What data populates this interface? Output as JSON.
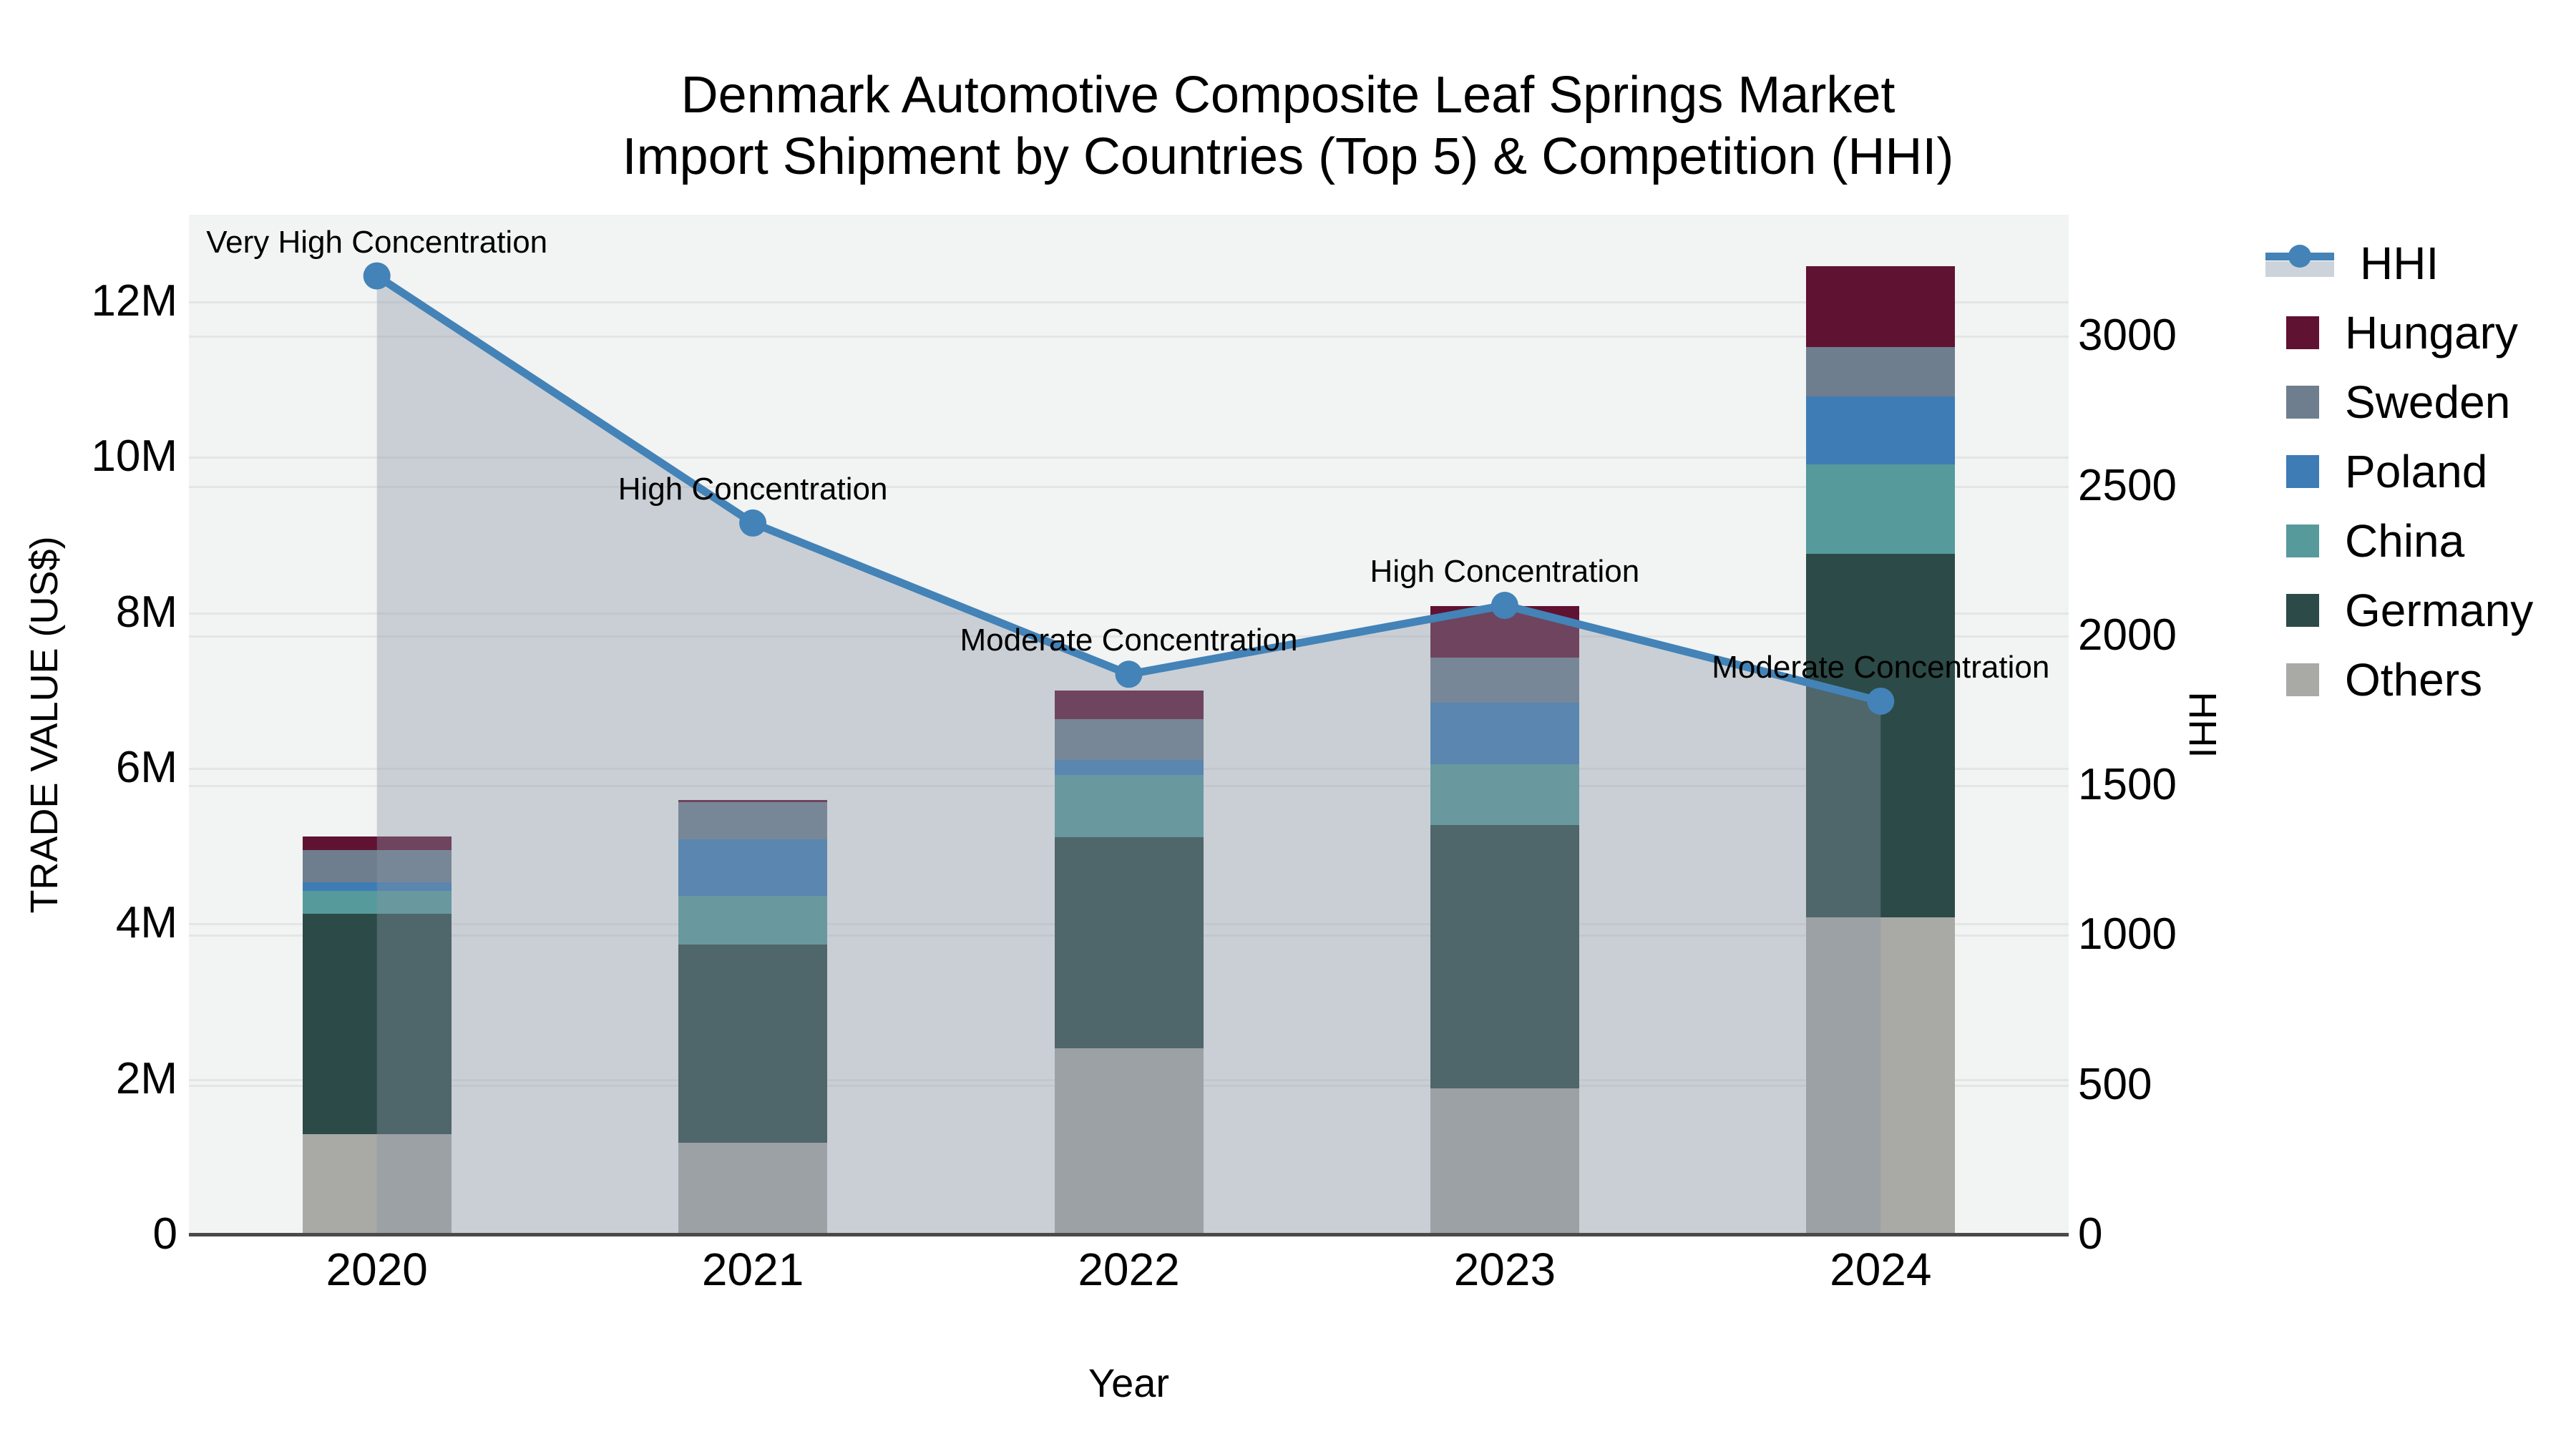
{
  "title": {
    "line1": "Denmark Automotive Composite Leaf Springs Market",
    "line2": "Import Shipment by Countries (Top 5) & Competition (HHI)"
  },
  "axes": {
    "left": {
      "title": "TRADE VALUE (US$)",
      "tick_labels": [
        "0",
        "2M",
        "4M",
        "6M",
        "8M",
        "10M",
        "12M"
      ],
      "tick_values_musd": [
        0,
        2,
        4,
        6,
        8,
        10,
        12
      ]
    },
    "right": {
      "title": "HHI",
      "tick_labels": [
        "0",
        "500",
        "1000",
        "1500",
        "2000",
        "2500",
        "3000"
      ],
      "tick_values": [
        0,
        500,
        1000,
        1500,
        2000,
        2500,
        3000
      ]
    },
    "x": {
      "title": "Year",
      "categories": [
        "2020",
        "2021",
        "2022",
        "2023",
        "2024"
      ]
    }
  },
  "legend": {
    "items": [
      {
        "label": "HHI",
        "type": "line",
        "color": "#4383b7",
        "band_color": "#cdd3da"
      },
      {
        "label": "Hungary",
        "type": "square",
        "color": "#601232"
      },
      {
        "label": "Sweden",
        "type": "square",
        "color": "#6e7e8e"
      },
      {
        "label": "Poland",
        "type": "square",
        "color": "#3e7cb6"
      },
      {
        "label": "China",
        "type": "square",
        "color": "#569a9b"
      },
      {
        "label": "Germany",
        "type": "square",
        "color": "#2c4a47"
      },
      {
        "label": "Others",
        "type": "square",
        "color": "#a9a9a6"
      }
    ]
  },
  "annotations": [
    "Very High Concentration",
    "High Concentration",
    "Moderate Concentration",
    "High Concentration",
    "Moderate Concentration"
  ],
  "chart_data": {
    "type": "bar+line",
    "title": "Denmark Automotive Composite Leaf Springs Market — Import Shipment by Countries (Top 5) & Competition (HHI)",
    "categories": [
      "2020",
      "2021",
      "2022",
      "2023",
      "2024"
    ],
    "bar_units": "US$ millions (stacked trade value, left axis)",
    "stack_order_bottom_to_top": [
      "Others",
      "Germany",
      "China",
      "Poland",
      "Sweden",
      "Hungary"
    ],
    "series": [
      {
        "name": "Others",
        "color": "#a9a9a6",
        "values": [
          1.29,
          1.18,
          2.39,
          1.88,
          4.08
        ]
      },
      {
        "name": "Germany",
        "color": "#2c4a47",
        "values": [
          2.83,
          2.55,
          2.72,
          3.38,
          4.67
        ]
      },
      {
        "name": "China",
        "color": "#569a9b",
        "values": [
          0.3,
          0.62,
          0.8,
          0.79,
          1.15
        ]
      },
      {
        "name": "Poland",
        "color": "#3e7cb6",
        "values": [
          0.11,
          0.73,
          0.19,
          0.79,
          0.88
        ]
      },
      {
        "name": "Sweden",
        "color": "#6e7e8e",
        "values": [
          0.41,
          0.48,
          0.53,
          0.58,
          0.63
        ]
      },
      {
        "name": "Hungary",
        "color": "#601232",
        "values": [
          0.18,
          0.03,
          0.36,
          0.66,
          1.04
        ]
      }
    ],
    "bar_totals_musd": [
      5.12,
      5.59,
      6.99,
      8.08,
      12.46
    ],
    "hhi_line": {
      "name": "HHI",
      "axis": "right",
      "color": "#4383b7",
      "area_fill": "rgba(136,149,166,0.38)",
      "values": [
        3200,
        2375,
        1870,
        2100,
        1780
      ],
      "point_labels": [
        "Very High Concentration",
        "High Concentration",
        "Moderate Concentration",
        "High Concentration",
        "Moderate Concentration"
      ]
    },
    "xlabel": "Year",
    "ylabel_left": "TRADE VALUE (US$)",
    "ylabel_right": "HHI",
    "ylim_left_musd": [
      0,
      13.1
    ],
    "ylim_right": [
      0,
      3404
    ],
    "grid": true,
    "legend_position": "right"
  }
}
